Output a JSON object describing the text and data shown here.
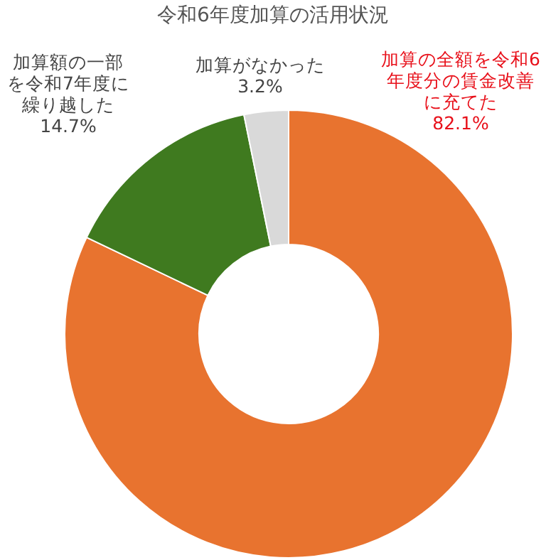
{
  "chart_data": {
    "type": "donut",
    "title": "令和6年度加算の活用状況",
    "categories": [
      "加算の全額を令和6年度分の賃金改善に充てた",
      "加算額の一部を令和7年度に繰り越した",
      "加算がなかった"
    ],
    "values": [
      82.1,
      14.7,
      3.2
    ],
    "value_labels": [
      "82.1%",
      "14.7%",
      "3.2%"
    ],
    "colors": [
      "#e8732f",
      "#3f7a1f",
      "#d9d9d9"
    ],
    "legend": false
  }
}
